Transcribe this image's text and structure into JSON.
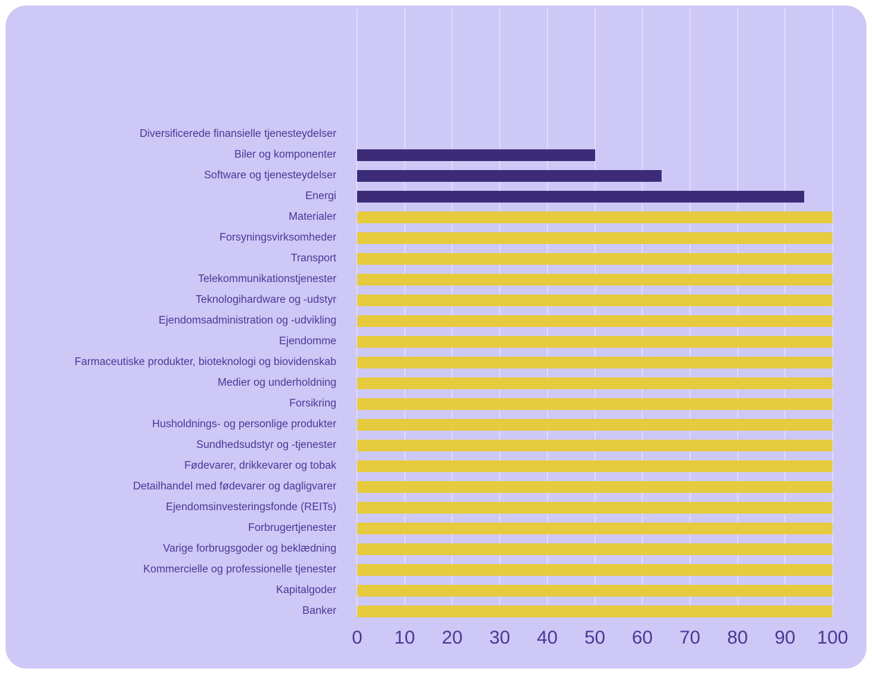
{
  "chart_data": {
    "type": "bar",
    "orientation": "horizontal",
    "title": "",
    "xlabel": "",
    "ylabel": "",
    "categories": [
      "Diversificerede finansielle tjenesteydelser",
      "Biler og komponenter",
      "Software og tjenesteydelser",
      "Energi",
      "Materialer",
      "Forsyningsvirksomheder",
      "Transport",
      "Telekommunikationstjenester",
      "Teknologihardware og -udstyr",
      "Ejendomsadministration og -udvikling",
      "Ejendomme",
      "Farmaceutiske produkter, bioteknologi og biovidenskab",
      "Medier og underholdning",
      "Forsikring",
      "Husholdnings- og personlige produkter",
      "Sundhedsudstyr og -tjenester",
      "Fødevarer, drikkevarer og tobak",
      "Detailhandel med fødevarer og dagligvarer",
      "Ejendomsinvesteringsfonde (REITs)",
      "Forbrugertjenester",
      "Varige forbrugsgoder og beklædning",
      "Kommercielle og professionelle tjenester",
      "Kapitalgoder",
      "Banker"
    ],
    "values": [
      0,
      50,
      64,
      94,
      100,
      100,
      100,
      100,
      100,
      100,
      100,
      100,
      100,
      100,
      100,
      100,
      100,
      100,
      100,
      100,
      100,
      100,
      100,
      100
    ],
    "bar_styles": [
      "highlight",
      "highlight",
      "highlight",
      "highlight",
      "base",
      "base",
      "base",
      "base",
      "base",
      "base",
      "base",
      "base",
      "base",
      "base",
      "base",
      "base",
      "base",
      "base",
      "base",
      "base",
      "base",
      "base",
      "base",
      "base"
    ],
    "x_ticks": [
      "0",
      "10",
      "20",
      "30",
      "40",
      "50",
      "60",
      "70",
      "80",
      "90",
      "100"
    ],
    "xlim": [
      0,
      100
    ],
    "grid": "vertical",
    "legend": "none",
    "colors": {
      "highlight": "#3c2c78",
      "base": "#e6cb3e",
      "grid": "#dedafa",
      "text": "#4a3794",
      "card_bg": "#cec8f7",
      "page_bg": "#ffffff"
    }
  }
}
